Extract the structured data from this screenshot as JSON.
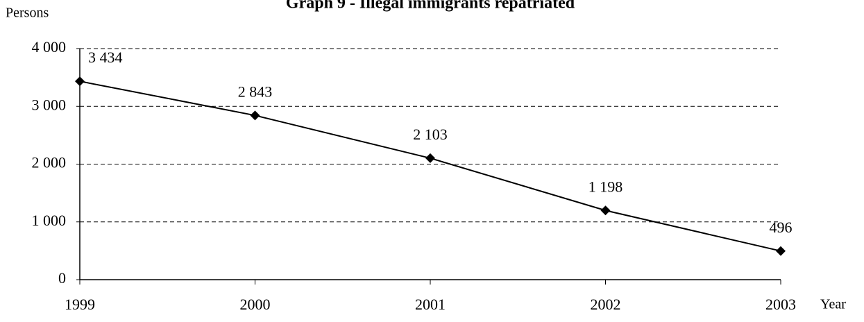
{
  "chart_data": {
    "type": "line",
    "title": "Graph 9 - Illegal immigrants repatriated",
    "y_label": "Persons",
    "x_label": "Year",
    "categories": [
      "1999",
      "2000",
      "2001",
      "2002",
      "2003"
    ],
    "series": [
      {
        "name": "Illegal immigrants repatriated",
        "color": "#000000",
        "values": [
          3434,
          2843,
          2103,
          1198,
          496
        ],
        "value_labels": [
          "3 434",
          "2 843",
          "2 103",
          "1 198",
          "496"
        ]
      }
    ],
    "ylim": [
      0,
      4000
    ],
    "yticks": [
      0,
      {
        "value": 1000,
        "label": "1 000"
      },
      {
        "value": 2000,
        "label": "2 000"
      },
      {
        "value": 3000,
        "label": "3 000"
      },
      {
        "value": 4000,
        "label": "4 000"
      }
    ],
    "grid": true
  }
}
